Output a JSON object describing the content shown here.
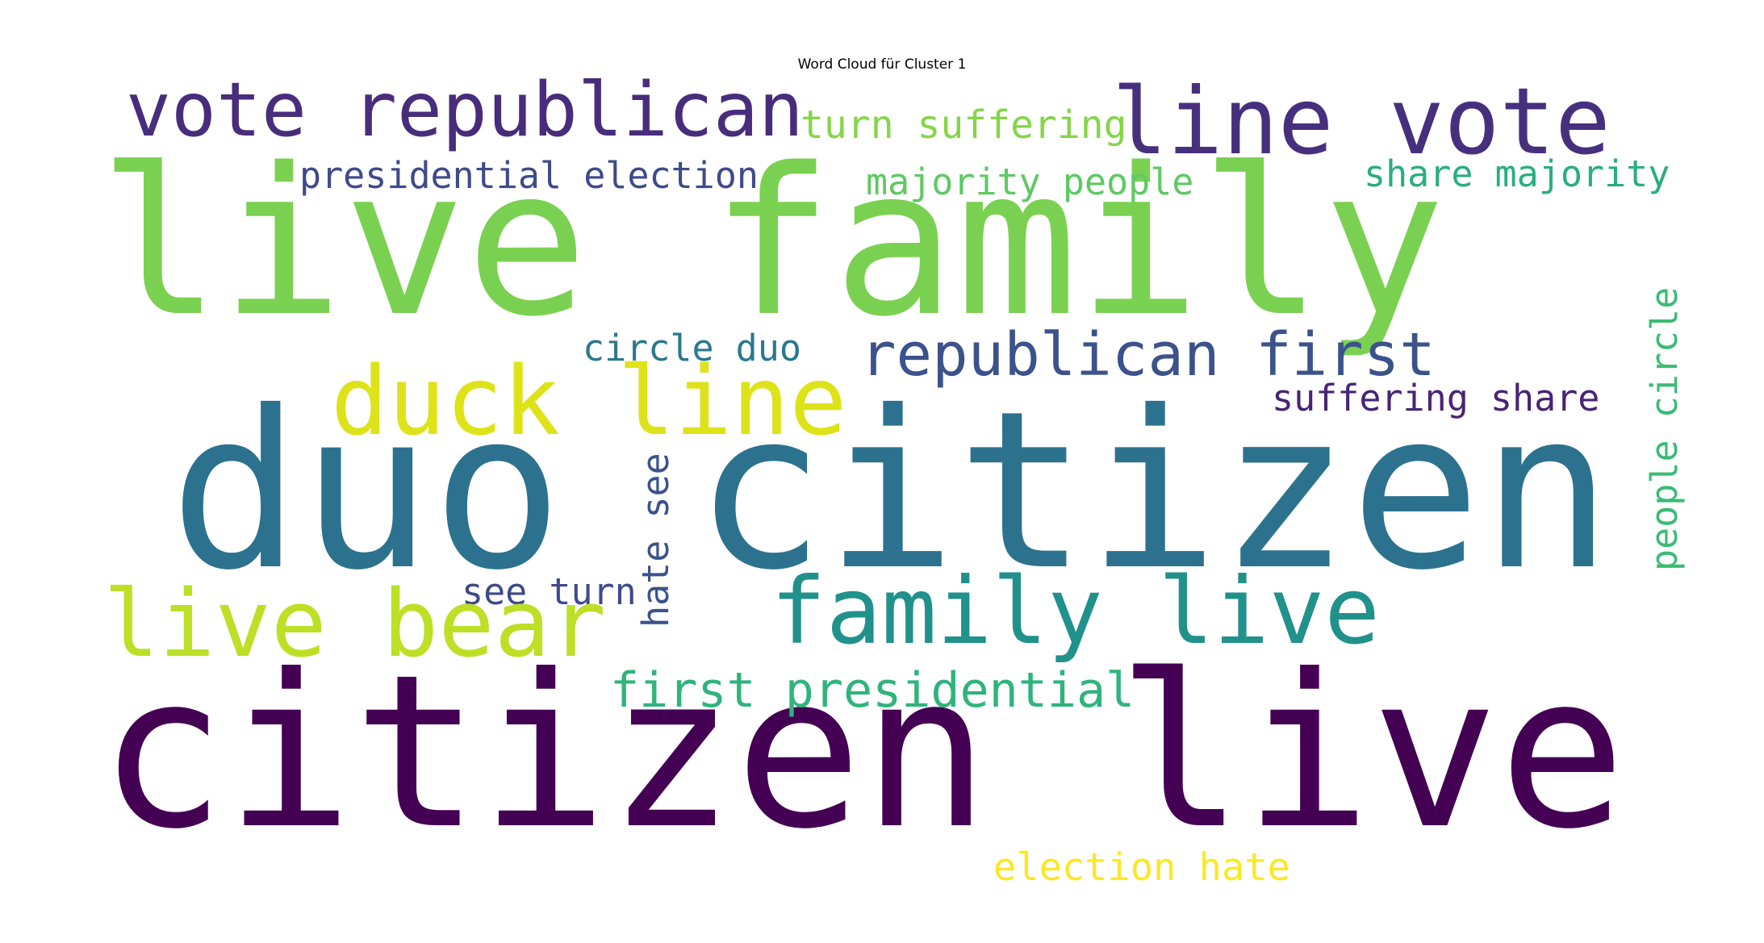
{
  "title": "Word Cloud für Cluster 1",
  "words": [
    {
      "text": "live family",
      "color": "#7ad151"
    },
    {
      "text": "duo citizen",
      "color": "#2c728e"
    },
    {
      "text": "citizen live",
      "color": "#440154"
    },
    {
      "text": "vote republican",
      "color": "#472d7b"
    },
    {
      "text": "line vote",
      "color": "#46307e"
    },
    {
      "text": "turn suffering",
      "color": "#86d549"
    },
    {
      "text": "presidential election",
      "color": "#3e4a89"
    },
    {
      "text": "majority people",
      "color": "#5ec962"
    },
    {
      "text": "share majority",
      "color": "#28ae80"
    },
    {
      "text": "duck line",
      "color": "#dde318"
    },
    {
      "text": "republican first",
      "color": "#3b528b"
    },
    {
      "text": "circle duo",
      "color": "#2a788e"
    },
    {
      "text": "suffering share",
      "color": "#482475"
    },
    {
      "text": "people circle",
      "color": "#3bbb75"
    },
    {
      "text": "hate see",
      "color": "#3b528b"
    },
    {
      "text": "see turn",
      "color": "#3e4a89"
    },
    {
      "text": "live bear",
      "color": "#bddf26"
    },
    {
      "text": "family live",
      "color": "#21918c"
    },
    {
      "text": "first presidential",
      "color": "#2fb47c"
    },
    {
      "text": "election hate",
      "color": "#fde725"
    }
  ]
}
